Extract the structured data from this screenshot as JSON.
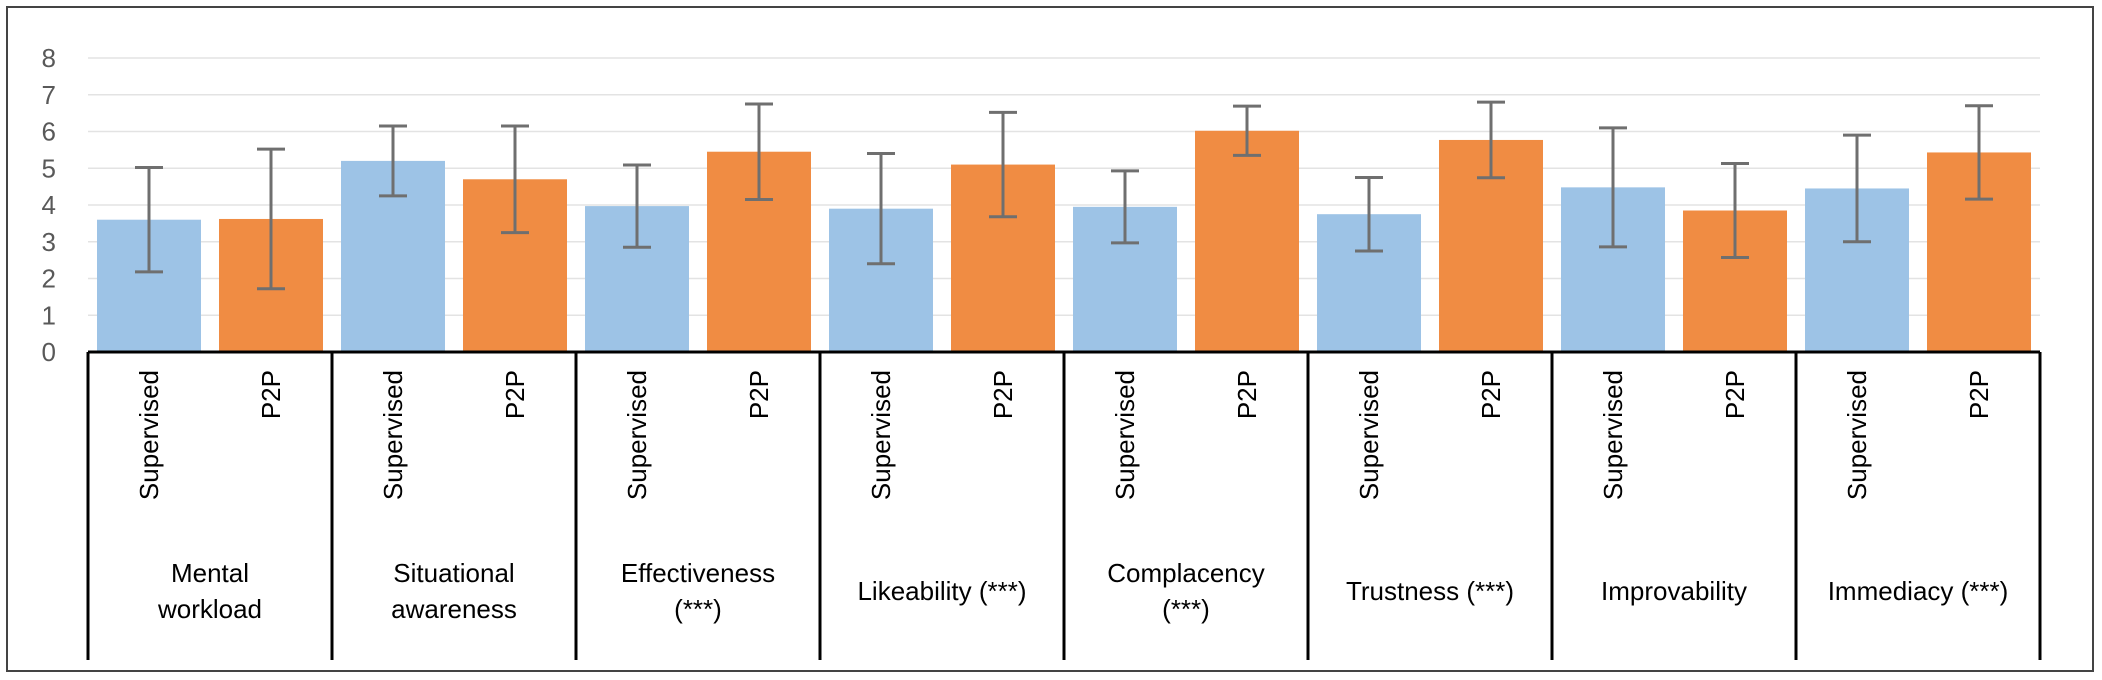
{
  "chart_data": {
    "type": "bar",
    "title": "",
    "ylim": [
      0,
      8
    ],
    "yticks": [
      0,
      1,
      2,
      3,
      4,
      5,
      6,
      7,
      8
    ],
    "grid": true,
    "subcategories": [
      "Supervised",
      "P2P"
    ],
    "colors": {
      "Supervised": "#9dc3e6",
      "P2P": "#f08c43",
      "error_bar": "#6f6f6f"
    },
    "groups": [
      {
        "label_lines": [
          "Mental",
          "workload"
        ],
        "values": [
          3.6,
          3.62
        ],
        "errors": [
          1.42,
          1.9
        ]
      },
      {
        "label_lines": [
          "Situational",
          "awareness"
        ],
        "values": [
          5.2,
          4.7
        ],
        "errors": [
          0.95,
          1.45
        ]
      },
      {
        "label_lines": [
          "Effectiveness",
          "(***)"
        ],
        "values": [
          3.97,
          5.45
        ],
        "errors": [
          1.12,
          1.3
        ]
      },
      {
        "label_lines": [
          "Likeability (***)"
        ],
        "values": [
          3.9,
          5.1
        ],
        "errors": [
          1.5,
          1.42
        ]
      },
      {
        "label_lines": [
          "Complacency",
          "(***)"
        ],
        "values": [
          3.95,
          6.02
        ],
        "errors": [
          0.98,
          0.67
        ]
      },
      {
        "label_lines": [
          "Trustness (***)"
        ],
        "values": [
          3.75,
          5.77
        ],
        "errors": [
          1.0,
          1.03
        ]
      },
      {
        "label_lines": [
          "Improvability"
        ],
        "values": [
          4.48,
          3.85
        ],
        "errors": [
          1.62,
          1.28
        ]
      },
      {
        "label_lines": [
          "Immediacy (***)"
        ],
        "values": [
          4.45,
          5.43
        ],
        "errors": [
          1.45,
          1.27
        ]
      }
    ]
  }
}
